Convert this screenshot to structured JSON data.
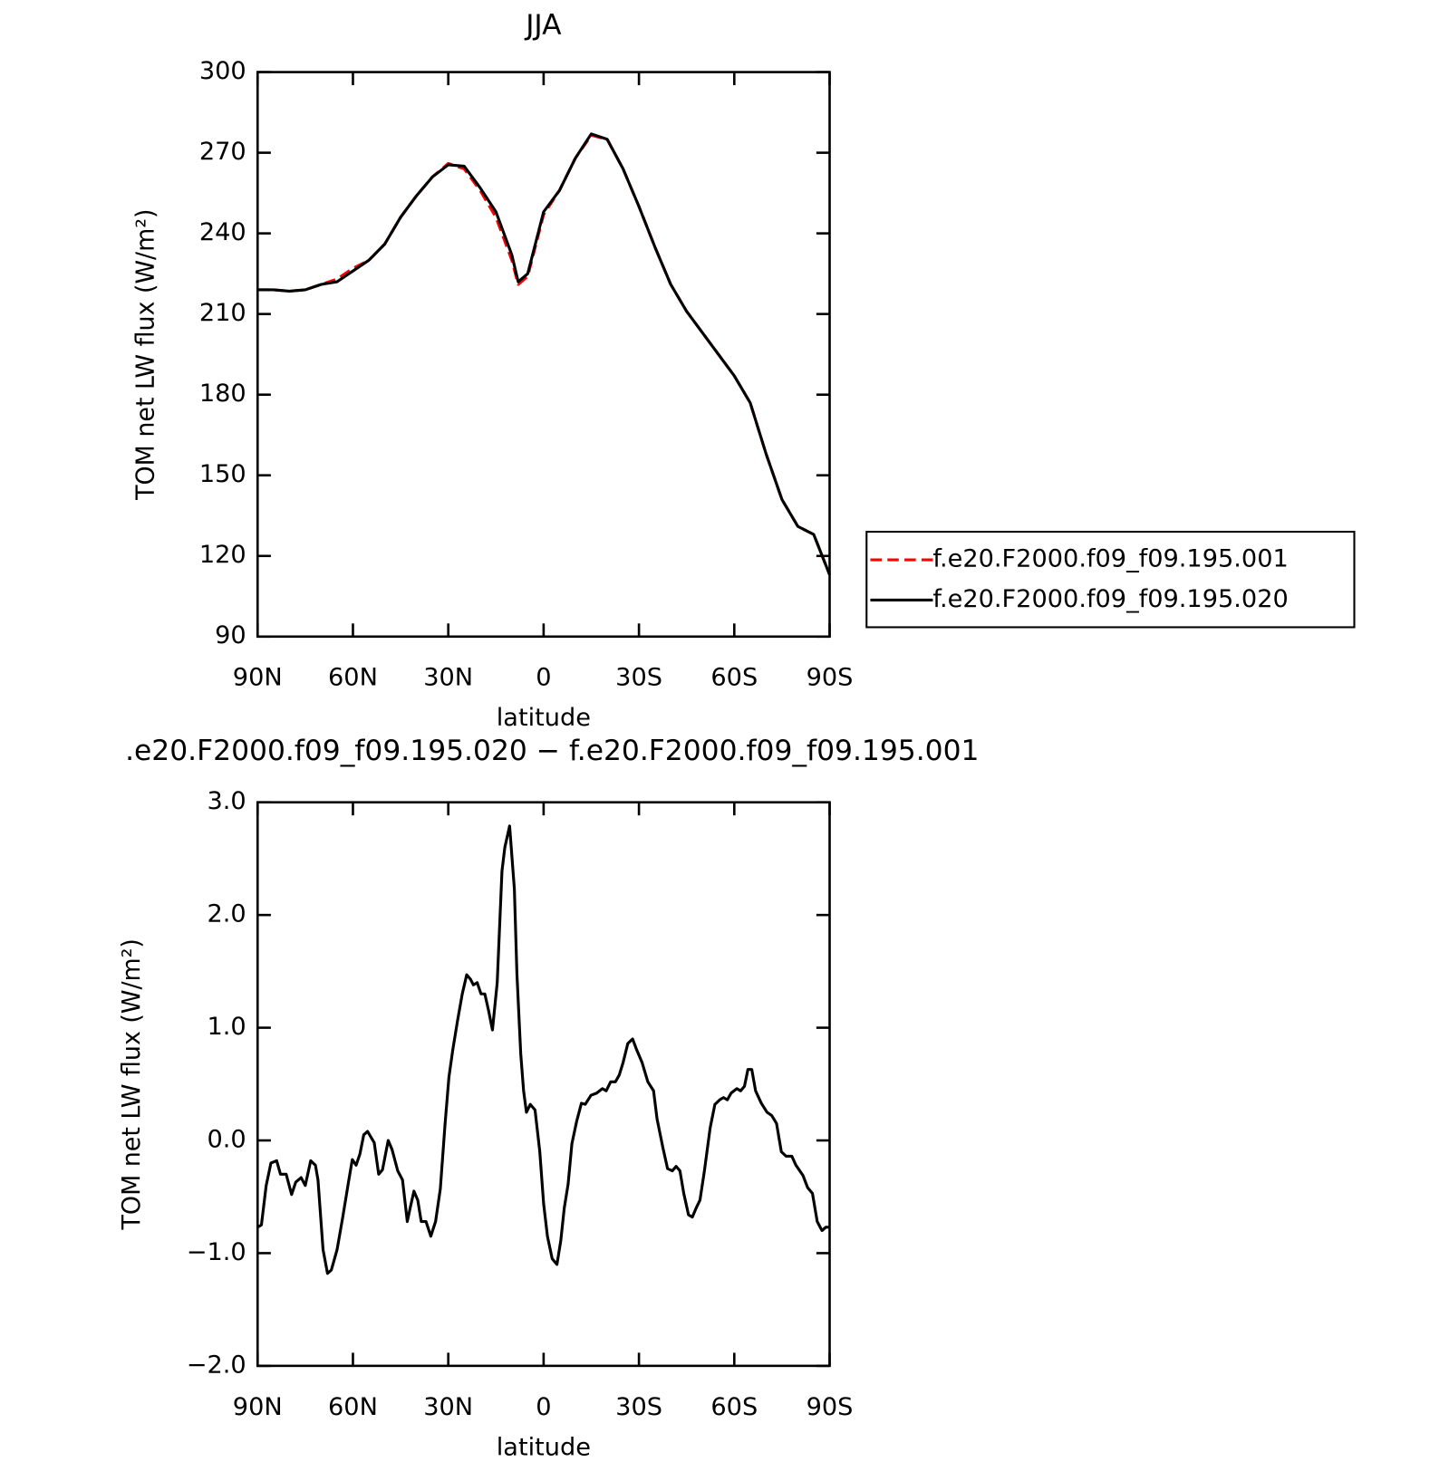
{
  "chart_data": [
    {
      "type": "line",
      "title": "JJA",
      "ylabel": "TOM net LW flux (W/m²)",
      "xlabel": "latitude",
      "xlim": [
        90,
        -90
      ],
      "xticks": [
        {
          "value": 90,
          "label": "90N"
        },
        {
          "value": 60,
          "label": "60N"
        },
        {
          "value": 30,
          "label": "30N"
        },
        0,
        {
          "value": -30,
          "label": "30S"
        },
        {
          "value": -60,
          "label": "60S"
        },
        {
          "value": -90,
          "label": "90S"
        }
      ],
      "ylim": [
        90,
        300
      ],
      "yticks": [
        90,
        120,
        150,
        180,
        210,
        240,
        270,
        300
      ],
      "legend": "right",
      "x": [
        90,
        85,
        80,
        75,
        70,
        65,
        60,
        55,
        50,
        45,
        40,
        35,
        30,
        25,
        20,
        15,
        10,
        8,
        5,
        0,
        -5,
        -10,
        -15,
        -20,
        -25,
        -30,
        -35,
        -40,
        -45,
        -50,
        -55,
        -60,
        -65,
        -70,
        -75,
        -80,
        -85,
        -90
      ],
      "series": [
        {
          "name": "f.e20.F2000.f09_f09.195.001",
          "color": "#ff0000",
          "linestyle": "dashed",
          "values": [
            219,
            219,
            218.5,
            219,
            221,
            223,
            227,
            230,
            236,
            246,
            254,
            261,
            266,
            264,
            256,
            246,
            230,
            221,
            224,
            247,
            256,
            268,
            276.5,
            275,
            264,
            250,
            235,
            221,
            211,
            203,
            195,
            187,
            177,
            158,
            141,
            131,
            128,
            113
          ]
        },
        {
          "name": "f.e20.F2000.f09_f09.195.020",
          "color": "#000000",
          "linestyle": "solid",
          "values": [
            219,
            219,
            218.5,
            219,
            221,
            222,
            226,
            230,
            236,
            246,
            254,
            261,
            265.5,
            265,
            257,
            248,
            232,
            222,
            225,
            248,
            256,
            268,
            277,
            275,
            264,
            250,
            235,
            221,
            211,
            203,
            195,
            187,
            177,
            158,
            141,
            131,
            128,
            113
          ]
        }
      ]
    },
    {
      "type": "line",
      "title": ".e20.F2000.f09_f09.195.020 − f.e20.F2000.f09_f09.195.001",
      "ylabel": "TOM net LW flux (W/m²)",
      "xlabel": "latitude",
      "xlim": [
        90,
        -90
      ],
      "xticks": [
        {
          "value": 90,
          "label": "90N"
        },
        {
          "value": 60,
          "label": "60N"
        },
        {
          "value": 30,
          "label": "30N"
        },
        0,
        {
          "value": -30,
          "label": "30S"
        },
        {
          "value": -60,
          "label": "60S"
        },
        {
          "value": -90,
          "label": "90S"
        }
      ],
      "ylim": [
        -2,
        3
      ],
      "yticks": [
        {
          "value": -2,
          "label": "−2.0"
        },
        {
          "value": -1,
          "label": "−1.0"
        },
        {
          "value": 0,
          "label": "0.0"
        },
        {
          "value": 1,
          "label": "1.0"
        },
        {
          "value": 2,
          "label": "2.0"
        },
        {
          "value": 3,
          "label": "3.0"
        }
      ],
      "x": [
        90,
        88.8,
        87.3,
        85.8,
        84,
        82.8,
        81,
        79.3,
        78,
        76.3,
        75,
        73.3,
        71.8,
        71,
        69.4,
        68,
        66.8,
        65,
        63.2,
        61.4,
        60.2,
        59,
        57.8,
        56.6,
        55.4,
        53.3,
        51.9,
        50.7,
        48.9,
        47.7,
        45.9,
        44.4,
        42.9,
        42,
        40.8,
        39.6,
        38.5,
        37,
        35.5,
        34,
        32.5,
        31,
        29.8,
        28.6,
        27.1,
        25.6,
        24.2,
        23,
        22.1,
        20.9,
        19.7,
        18.5,
        17.3,
        16.1,
        14.6,
        13.1,
        12.2,
        10.7,
        9.2,
        8.4,
        7.2,
        6.3,
        5.4,
        4.2,
        2.7,
        1.2,
        0,
        -1.2,
        -2.7,
        -4.2,
        -5.4,
        -6.5,
        -7.7,
        -8.9,
        -10.4,
        -11.9,
        -13.1,
        -14.9,
        -16.7,
        -18.5,
        -19.7,
        -21.1,
        -22.6,
        -23.8,
        -25,
        -26.5,
        -28,
        -29.2,
        -31,
        -32.8,
        -34.6,
        -35.7,
        -37.5,
        -39,
        -40.5,
        -41.7,
        -42.9,
        -44.1,
        -45.6,
        -46.8,
        -48,
        -49.2,
        -50.6,
        -52.4,
        -53.9,
        -55.4,
        -56.6,
        -57.8,
        -59,
        -60.8,
        -62,
        -63.2,
        -64.3,
        -65.5,
        -66.7,
        -68.5,
        -70.3,
        -71.8,
        -73.3,
        -74.8,
        -76.3,
        -78.1,
        -79.4,
        -81.6,
        -83.1,
        -84.6,
        -86.1,
        -87.6,
        -88.8,
        -90
      ],
      "series": [
        {
          "color": "#000000",
          "linestyle": "solid",
          "values": [
            -0.77,
            -0.75,
            -0.4,
            -0.2,
            -0.18,
            -0.3,
            -0.3,
            -0.48,
            -0.37,
            -0.33,
            -0.4,
            -0.18,
            -0.22,
            -0.35,
            -0.97,
            -1.18,
            -1.15,
            -0.97,
            -0.68,
            -0.37,
            -0.17,
            -0.22,
            -0.12,
            0.05,
            0.08,
            -0.02,
            -0.3,
            -0.26,
            0,
            -0.08,
            -0.27,
            -0.35,
            -0.72,
            -0.6,
            -0.45,
            -0.53,
            -0.72,
            -0.72,
            -0.85,
            -0.72,
            -0.43,
            0.15,
            0.56,
            0.8,
            1.06,
            1.3,
            1.47,
            1.43,
            1.38,
            1.4,
            1.3,
            1.3,
            1.15,
            0.98,
            1.4,
            2.39,
            2.6,
            2.79,
            2.23,
            1.48,
            0.77,
            0.44,
            0.25,
            0.32,
            0.27,
            -0.1,
            -0.56,
            -0.85,
            -1.05,
            -1.1,
            -0.89,
            -0.6,
            -0.39,
            -0.03,
            0.17,
            0.33,
            0.32,
            0.4,
            0.42,
            0.46,
            0.44,
            0.52,
            0.52,
            0.58,
            0.69,
            0.86,
            0.9,
            0.81,
            0.69,
            0.52,
            0.44,
            0.19,
            -0.06,
            -0.25,
            -0.27,
            -0.23,
            -0.27,
            -0.47,
            -0.66,
            -0.68,
            -0.6,
            -0.53,
            -0.27,
            0.11,
            0.32,
            0.36,
            0.38,
            0.36,
            0.42,
            0.46,
            0.44,
            0.48,
            0.63,
            0.63,
            0.44,
            0.33,
            0.25,
            0.22,
            0.15,
            -0.1,
            -0.14,
            -0.14,
            -0.22,
            -0.31,
            -0.42,
            -0.47,
            -0.72,
            -0.8,
            -0.77,
            -0.77
          ]
        }
      ]
    }
  ]
}
